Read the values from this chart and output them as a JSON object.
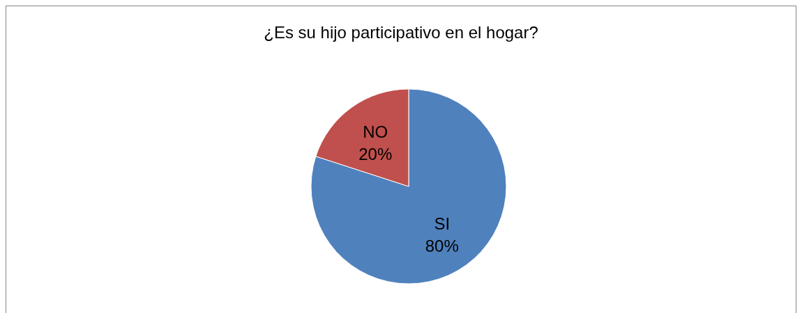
{
  "chart_data": {
    "type": "pie",
    "title": "¿Es su hijo participativo en el hogar?",
    "categories": [
      "SI",
      "NO"
    ],
    "values": [
      80,
      20
    ],
    "colors": [
      "#4f81bd",
      "#c0504d"
    ],
    "value_labels": [
      "80%",
      "20%"
    ],
    "legend": false
  }
}
